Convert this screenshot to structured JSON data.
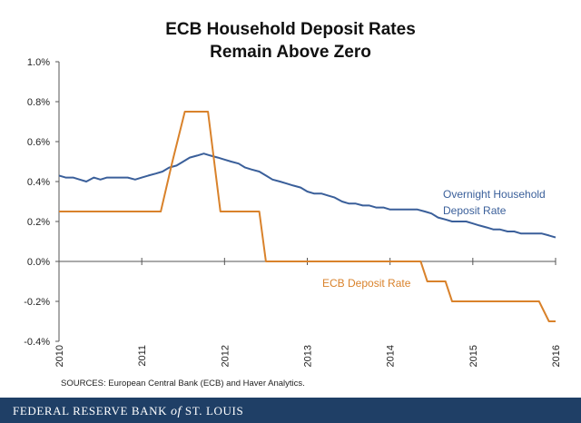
{
  "chart_data": {
    "type": "line",
    "title": [
      "ECB Household Deposit Rates",
      "Remain Above Zero"
    ],
    "xlabel": "",
    "ylabel": "",
    "xlim": [
      2010,
      2016
    ],
    "ylim": [
      -0.4,
      1.0
    ],
    "y_ticks": [
      1.0,
      0.8,
      0.6,
      0.4,
      0.2,
      0.0,
      -0.2,
      -0.4
    ],
    "y_tick_labels": [
      "1.0%",
      "0.8%",
      "0.6%",
      "0.4%",
      "0.2%",
      "0.0%",
      "-0.2%",
      "-0.4%"
    ],
    "x_ticks": [
      2010,
      2011,
      2012,
      2013,
      2014,
      2015,
      2016
    ],
    "x_tick_labels": [
      "2010",
      "2011",
      "2012",
      "2013",
      "2014",
      "2015",
      "2016"
    ],
    "grid": false,
    "series": [
      {
        "name": "Overnight Household Deposit Rate",
        "label_lines": [
          "Overnight Household",
          "Deposit Rate"
        ],
        "color": "#3a5f9a",
        "x": [
          2010.0,
          2010.08,
          2010.17,
          2010.25,
          2010.33,
          2010.42,
          2010.5,
          2010.58,
          2010.67,
          2010.75,
          2010.83,
          2010.92,
          2011.0,
          2011.08,
          2011.17,
          2011.25,
          2011.33,
          2011.42,
          2011.5,
          2011.58,
          2011.67,
          2011.75,
          2011.83,
          2011.92,
          2012.0,
          2012.08,
          2012.17,
          2012.25,
          2012.33,
          2012.42,
          2012.5,
          2012.58,
          2012.67,
          2012.75,
          2012.83,
          2012.92,
          2013.0,
          2013.08,
          2013.17,
          2013.25,
          2013.33,
          2013.42,
          2013.5,
          2013.58,
          2013.67,
          2013.75,
          2013.83,
          2013.92,
          2014.0,
          2014.08,
          2014.17,
          2014.25,
          2014.33,
          2014.42,
          2014.5,
          2014.58,
          2014.67,
          2014.75,
          2014.83,
          2014.92,
          2015.0,
          2015.08,
          2015.17,
          2015.25,
          2015.33,
          2015.42,
          2015.5,
          2015.58,
          2015.67,
          2015.75,
          2015.83,
          2015.92,
          2016.0
        ],
        "values": [
          0.43,
          0.42,
          0.42,
          0.41,
          0.4,
          0.42,
          0.41,
          0.42,
          0.42,
          0.42,
          0.42,
          0.41,
          0.42,
          0.43,
          0.44,
          0.45,
          0.47,
          0.48,
          0.5,
          0.52,
          0.53,
          0.54,
          0.53,
          0.52,
          0.51,
          0.5,
          0.49,
          0.47,
          0.46,
          0.45,
          0.43,
          0.41,
          0.4,
          0.39,
          0.38,
          0.37,
          0.35,
          0.34,
          0.34,
          0.33,
          0.32,
          0.3,
          0.29,
          0.29,
          0.28,
          0.28,
          0.27,
          0.27,
          0.26,
          0.26,
          0.26,
          0.26,
          0.26,
          0.25,
          0.24,
          0.22,
          0.21,
          0.2,
          0.2,
          0.2,
          0.19,
          0.18,
          0.17,
          0.16,
          0.16,
          0.15,
          0.15,
          0.14,
          0.14,
          0.14,
          0.14,
          0.13,
          0.12
        ]
      },
      {
        "name": "ECB Deposit Rate",
        "label_lines": [
          "ECB Deposit Rate"
        ],
        "color": "#d9822b",
        "step": true,
        "x": [
          2010.0,
          2011.23,
          2011.37,
          2011.52,
          2011.8,
          2011.95,
          2012.42,
          2012.5,
          2014.37,
          2014.45,
          2014.67,
          2014.75,
          2015.8,
          2015.92,
          2016.0
        ],
        "values": [
          0.25,
          0.25,
          0.5,
          0.75,
          0.75,
          0.25,
          0.25,
          0.0,
          0.0,
          -0.1,
          -0.1,
          -0.2,
          -0.2,
          -0.3,
          -0.3
        ]
      }
    ]
  },
  "sources": "SOURCES: European Central Bank (ECB) and Haver Analytics.",
  "footer": {
    "brand_main": "Federal Reserve Bank ",
    "brand_of": "of",
    "brand_end": " St. Louis"
  }
}
